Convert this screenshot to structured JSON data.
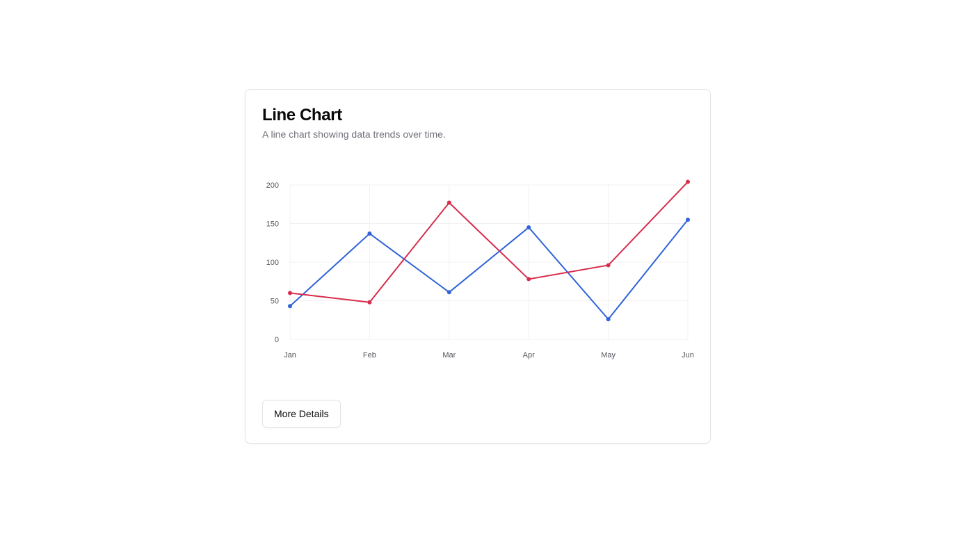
{
  "card": {
    "title": "Line Chart",
    "description": "A line chart showing data trends over time.",
    "button_label": "More Details"
  },
  "chart_data": {
    "type": "line",
    "categories": [
      "Jan",
      "Feb",
      "Mar",
      "Apr",
      "May",
      "Jun"
    ],
    "series": [
      {
        "color": "#2f63d6",
        "values": [
          43,
          137,
          61,
          145,
          26,
          155
        ]
      },
      {
        "color": "#d72c4c",
        "values": [
          60,
          48,
          177,
          78,
          96,
          204
        ]
      }
    ],
    "yticks": [
      0,
      50,
      100,
      150,
      200
    ],
    "ylim": [
      0,
      200
    ],
    "grid": true,
    "legend": "none"
  }
}
